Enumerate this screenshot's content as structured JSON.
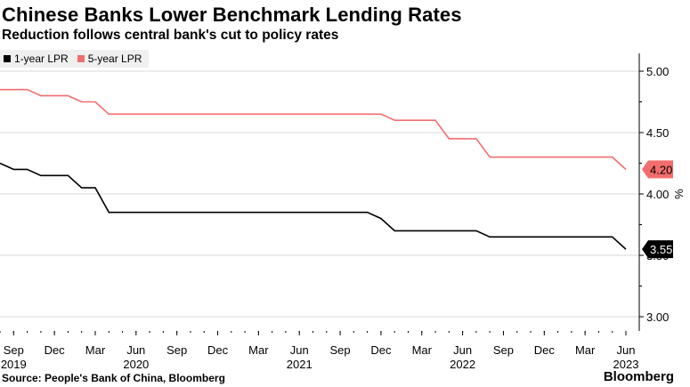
{
  "chart_data": {
    "type": "line",
    "title": "Chinese Banks Lower Benchmark Lending Rates",
    "subtitle": "Reduction follows central bank's cut to policy rates",
    "source": "Source: People's Bank of China, Bloomberg",
    "brand": "Bloomberg",
    "ylabel": "%",
    "ylim": [
      2.85,
      5.15
    ],
    "y_ticks": [
      "5.00",
      "4.50",
      "4.00",
      "3.50",
      "3.00"
    ],
    "x_ticks": [
      {
        "month": "Sep",
        "year": "2019"
      },
      {
        "month": "Dec",
        "year": ""
      },
      {
        "month": "Mar",
        "year": ""
      },
      {
        "month": "Jun",
        "year": "2020"
      },
      {
        "month": "Sep",
        "year": ""
      },
      {
        "month": "Dec",
        "year": ""
      },
      {
        "month": "Mar",
        "year": ""
      },
      {
        "month": "Jun",
        "year": "2021"
      },
      {
        "month": "Sep",
        "year": ""
      },
      {
        "month": "Dec",
        "year": ""
      },
      {
        "month": "Mar",
        "year": ""
      },
      {
        "month": "Jun",
        "year": "2022"
      },
      {
        "month": "Sep",
        "year": ""
      },
      {
        "month": "Dec",
        "year": ""
      },
      {
        "month": "Mar",
        "year": ""
      },
      {
        "month": "Jun",
        "year": "2023"
      }
    ],
    "legend_position": "top-left",
    "grid": true,
    "series": [
      {
        "name": "1-year LPR",
        "color": "#000000",
        "end_label": "3.55",
        "points": [
          [
            "2019-08",
            4.25
          ],
          [
            "2019-09",
            4.2
          ],
          [
            "2019-10",
            4.2
          ],
          [
            "2019-11",
            4.15
          ],
          [
            "2019-12",
            4.15
          ],
          [
            "2020-01",
            4.15
          ],
          [
            "2020-02",
            4.05
          ],
          [
            "2020-03",
            4.05
          ],
          [
            "2020-04",
            3.85
          ],
          [
            "2021-11",
            3.85
          ],
          [
            "2021-12",
            3.8
          ],
          [
            "2022-01",
            3.7
          ],
          [
            "2022-07",
            3.7
          ],
          [
            "2022-08",
            3.65
          ],
          [
            "2023-05",
            3.65
          ],
          [
            "2023-06",
            3.55
          ]
        ]
      },
      {
        "name": "5-year LPR",
        "color": "#f26d6d",
        "end_label": "4.20",
        "points": [
          [
            "2019-08",
            4.85
          ],
          [
            "2019-10",
            4.85
          ],
          [
            "2019-11",
            4.8
          ],
          [
            "2020-01",
            4.8
          ],
          [
            "2020-02",
            4.75
          ],
          [
            "2020-03",
            4.75
          ],
          [
            "2020-04",
            4.65
          ],
          [
            "2021-12",
            4.65
          ],
          [
            "2022-01",
            4.6
          ],
          [
            "2022-04",
            4.6
          ],
          [
            "2022-05",
            4.45
          ],
          [
            "2022-07",
            4.45
          ],
          [
            "2022-08",
            4.3
          ],
          [
            "2023-05",
            4.3
          ],
          [
            "2023-06",
            4.2
          ]
        ]
      }
    ]
  }
}
